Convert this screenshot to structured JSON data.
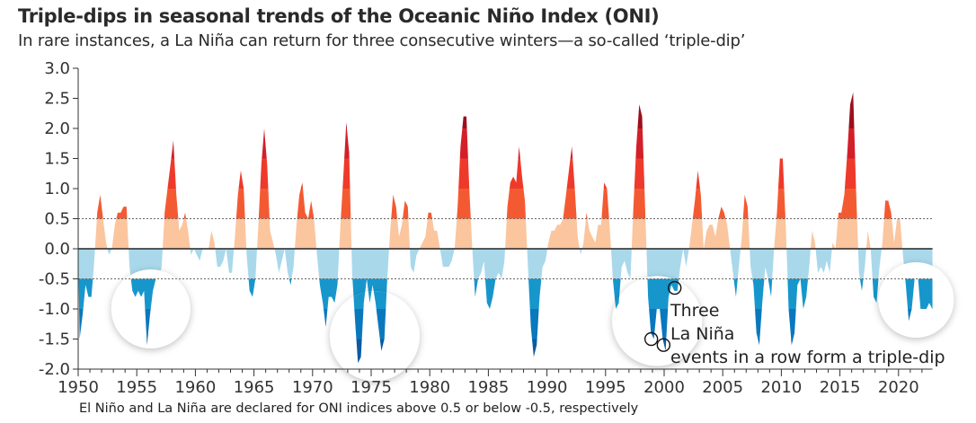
{
  "chart_data": {
    "type": "area",
    "title": "Triple-dips in seasonal trends of the Oceanic Niño Index (ONI)",
    "subtitle": "In rare instances, a La Niña can return for three consecutive winters—a so-called ‘triple-dip’",
    "footnote": "El Niño and La Niña are declared for ONI indices above 0.5 or below -0.5, respectively",
    "xlabel": "",
    "ylabel": "",
    "xlim": [
      1950,
      2022.9
    ],
    "ylim": [
      -2.0,
      3.0
    ],
    "x_ticks": [
      "1950",
      "1955",
      "1960",
      "1965",
      "1970",
      "1975",
      "1980",
      "1985",
      "1990",
      "1995",
      "2000",
      "2005",
      "2010",
      "2015",
      "2020"
    ],
    "y_ticks": [
      "3.0",
      "2.5",
      "2.0",
      "1.5",
      "1.0",
      "0.5",
      "0.0",
      "-0.5",
      "-1.0",
      "-1.5",
      "-2.0"
    ],
    "reference_lines": [
      0.5,
      -0.5
    ],
    "grid": false,
    "first_year": 1950,
    "points_per_year": 4,
    "values": [
      -1.5,
      -1.1,
      -0.6,
      -0.8,
      -0.8,
      -0.2,
      0.6,
      0.9,
      0.5,
      0.1,
      -0.1,
      0.0,
      0.4,
      0.6,
      0.6,
      0.7,
      0.7,
      -0.3,
      -0.7,
      -0.8,
      -0.7,
      -0.8,
      -0.7,
      -1.6,
      -1.1,
      -0.7,
      -0.5,
      -0.5,
      -0.3,
      0.6,
      1.0,
      1.4,
      1.8,
      0.9,
      0.3,
      0.4,
      0.6,
      0.3,
      -0.1,
      0.0,
      -0.1,
      -0.2,
      0.0,
      0.0,
      0.0,
      0.3,
      0.1,
      -0.3,
      -0.3,
      -0.2,
      0.0,
      -0.4,
      -0.4,
      0.2,
      0.9,
      1.3,
      1.0,
      -0.1,
      -0.7,
      -0.8,
      -0.5,
      0.4,
      1.4,
      2.0,
      1.4,
      0.3,
      0.1,
      -0.1,
      -0.4,
      -0.2,
      0.0,
      -0.4,
      -0.6,
      -0.3,
      0.4,
      0.9,
      1.1,
      0.6,
      0.5,
      0.8,
      0.5,
      -0.1,
      -0.6,
      -0.9,
      -1.3,
      -0.8,
      -0.8,
      -0.9,
      -0.6,
      0.4,
      1.2,
      2.1,
      1.6,
      -0.4,
      -1.2,
      -1.9,
      -1.8,
      -0.9,
      -0.5,
      -0.9,
      -0.6,
      -0.9,
      -1.3,
      -1.7,
      -1.5,
      -0.5,
      0.3,
      0.9,
      0.7,
      0.2,
      0.4,
      0.8,
      0.7,
      -0.3,
      -0.4,
      -0.1,
      0.0,
      0.1,
      0.2,
      0.6,
      0.6,
      0.3,
      0.3,
      0.0,
      -0.3,
      -0.3,
      -0.3,
      -0.2,
      0.0,
      0.7,
      1.7,
      2.2,
      2.2,
      1.0,
      0.0,
      -0.8,
      -0.5,
      -0.4,
      -0.2,
      -0.9,
      -1.0,
      -0.8,
      -0.5,
      -0.4,
      -0.5,
      -0.2,
      0.7,
      1.1,
      1.2,
      1.1,
      1.7,
      1.2,
      0.8,
      -0.3,
      -1.3,
      -1.8,
      -1.6,
      -0.8,
      -0.3,
      -0.2,
      0.1,
      0.3,
      0.3,
      0.4,
      0.4,
      0.5,
      0.9,
      1.3,
      1.7,
      1.0,
      0.2,
      -0.1,
      0.1,
      0.6,
      0.3,
      0.2,
      0.1,
      0.4,
      0.4,
      1.1,
      1.0,
      0.3,
      -0.5,
      -1.0,
      -0.9,
      -0.3,
      -0.2,
      -0.4,
      -0.5,
      0.7,
      1.7,
      2.4,
      2.2,
      0.7,
      -0.8,
      -1.4,
      -1.5,
      -1.0,
      -1.0,
      -1.5,
      -1.7,
      -0.8,
      -0.6,
      -0.7,
      -0.7,
      -0.3,
      0.0,
      -0.3,
      0.0,
      0.4,
      0.8,
      1.3,
      0.9,
      0.0,
      0.3,
      0.4,
      0.4,
      0.2,
      0.5,
      0.7,
      0.6,
      0.4,
      0.0,
      -0.4,
      -0.8,
      -0.3,
      0.2,
      0.9,
      0.7,
      -0.3,
      -0.6,
      -1.4,
      -1.6,
      -0.9,
      -0.3,
      -0.5,
      -0.8,
      0.0,
      0.6,
      1.5,
      1.5,
      0.4,
      -1.0,
      -1.6,
      -1.4,
      -0.6,
      -0.5,
      -1.0,
      -0.8,
      -0.3,
      0.3,
      0.1,
      -0.4,
      -0.3,
      -0.4,
      -0.2,
      -0.4,
      0.1,
      0.0,
      0.6,
      0.6,
      0.9,
      1.6,
      2.4,
      2.6,
      1.0,
      -0.4,
      -0.7,
      -0.3,
      0.3,
      0.0,
      -0.8,
      -0.9,
      -0.3,
      0.1,
      0.8,
      0.8,
      0.6,
      0.1,
      0.5,
      0.5,
      -0.1,
      -0.6,
      -1.2,
      -1.0,
      -0.5,
      -0.4,
      -1.0,
      -1.0,
      -1.0,
      -0.9,
      -1.0
    ],
    "band_colors": {
      "above_2.0": "#9c0f1e",
      "1.5_to_2.0": "#d31f29",
      "1.0_to_1.5": "#ee3a2b",
      "0.5_to_1.0": "#f45a32",
      "0.0_to_0.5": "#fbc59e",
      "0.0_to_-0.5": "#a9d8eb",
      "-0.5_to_-1.0": "#1796cc",
      "-1.0_to_-1.5": "#0a78bd",
      "below_-1.5": "#0a5ba3"
    },
    "highlighted_triple_dips": [
      "1954–1956",
      "1973–1976",
      "1998–2001",
      "2020–2022"
    ],
    "annotation": {
      "lines": [
        "Three",
        "La Niña",
        "events in a row form a triple-dip"
      ],
      "marked_events": [
        1998.9,
        1999.95,
        2000.9
      ]
    }
  }
}
